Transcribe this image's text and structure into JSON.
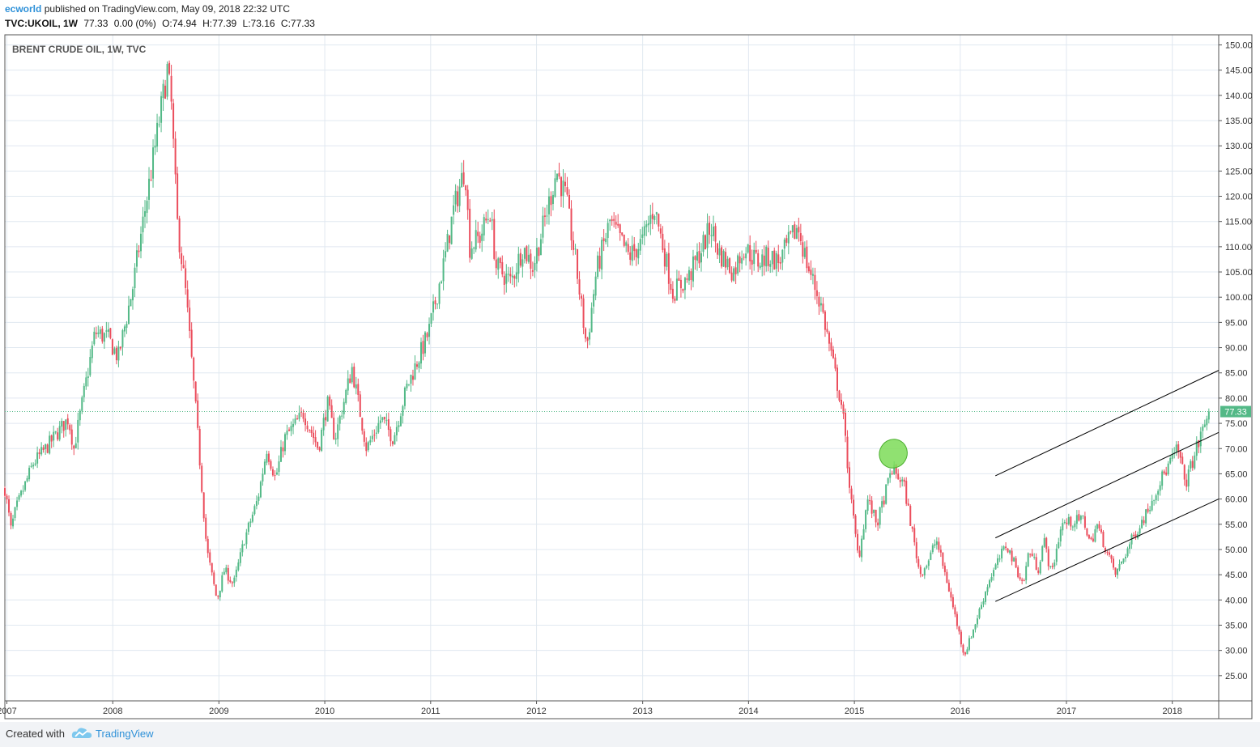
{
  "header": {
    "author": "ecworld",
    "published_text": "published on TradingView.com, May 09, 2018 22:32 UTC",
    "symbol": "TVC:UKOIL, 1W",
    "last": "77.33",
    "change": "0.00 (0%)",
    "open": "O:74.94",
    "high": "H:77.39",
    "low": "L:73.16",
    "close": "C:77.33"
  },
  "chart_title": "BRENT CRUDE OIL, 1W, TVC",
  "price_tag": "77.33",
  "footer": {
    "created_with": "Created with",
    "brand": "TradingView"
  },
  "colors": {
    "up": "#53b987",
    "down": "#eb4d5c",
    "grid": "#e0e8f0",
    "channel": "#000000",
    "highlight": "#7ddc58",
    "last_line": "#53b987"
  },
  "chart_data": {
    "type": "candlestick",
    "title": "BRENT CRUDE OIL, 1W, TVC",
    "ylim": [
      20,
      152
    ],
    "y_ticks": [
      "150.00",
      "145.00",
      "140.00",
      "135.00",
      "130.00",
      "125.00",
      "120.00",
      "115.00",
      "110.00",
      "105.00",
      "100.00",
      "95.00",
      "90.00",
      "85.00",
      "80.00",
      "75.00",
      "70.00",
      "65.00",
      "60.00",
      "55.00",
      "50.00",
      "45.00",
      "40.00",
      "35.00",
      "30.00",
      "25.00"
    ],
    "x_ticks": [
      "2007",
      "2008",
      "2009",
      "2010",
      "2011",
      "2012",
      "2013",
      "2014",
      "2015",
      "2016",
      "2017",
      "2018"
    ],
    "xlim": [
      "2006-12-25",
      "2018-06-10"
    ],
    "last_price": 77.33,
    "close_path": [
      [
        "2006-12-25",
        62
      ],
      [
        "2007-01-15",
        54
      ],
      [
        "2007-02-01",
        58
      ],
      [
        "2007-04-01",
        67
      ],
      [
        "2007-05-15",
        70
      ],
      [
        "2007-08-01",
        76
      ],
      [
        "2007-08-20",
        70
      ],
      [
        "2007-11-01",
        93
      ],
      [
        "2007-12-15",
        92
      ],
      [
        "2008-01-20",
        88
      ],
      [
        "2008-03-10",
        102
      ],
      [
        "2008-04-20",
        117
      ],
      [
        "2008-06-01",
        132
      ],
      [
        "2008-07-07",
        145
      ],
      [
        "2008-07-21",
        138
      ],
      [
        "2008-08-10",
        115
      ],
      [
        "2008-09-10",
        100
      ],
      [
        "2008-10-10",
        80
      ],
      [
        "2008-11-20",
        50
      ],
      [
        "2008-12-25",
        40
      ],
      [
        "2009-01-20",
        46
      ],
      [
        "2009-02-20",
        43
      ],
      [
        "2009-03-30",
        52
      ],
      [
        "2009-05-15",
        60
      ],
      [
        "2009-06-15",
        70
      ],
      [
        "2009-07-15",
        64
      ],
      [
        "2009-08-15",
        72
      ],
      [
        "2009-10-20",
        77
      ],
      [
        "2009-12-10",
        70
      ],
      [
        "2010-01-10",
        79
      ],
      [
        "2010-02-05",
        72
      ],
      [
        "2010-04-05",
        86
      ],
      [
        "2010-05-25",
        70
      ],
      [
        "2010-07-15",
        76
      ],
      [
        "2010-08-25",
        72
      ],
      [
        "2010-10-10",
        82
      ],
      [
        "2010-12-25",
        93
      ],
      [
        "2011-02-20",
        108
      ],
      [
        "2011-03-20",
        117
      ],
      [
        "2011-04-30",
        126
      ],
      [
        "2011-05-15",
        110
      ],
      [
        "2011-06-20",
        112
      ],
      [
        "2011-07-25",
        117
      ],
      [
        "2011-08-15",
        106
      ],
      [
        "2011-10-05",
        103
      ],
      [
        "2011-11-15",
        110
      ],
      [
        "2011-12-20",
        106
      ],
      [
        "2012-02-10",
        118
      ],
      [
        "2012-03-10",
        125
      ],
      [
        "2012-04-10",
        120
      ],
      [
        "2012-05-15",
        107
      ],
      [
        "2012-06-22",
        90
      ],
      [
        "2012-07-25",
        105
      ],
      [
        "2012-09-10",
        115
      ],
      [
        "2012-10-10",
        112
      ],
      [
        "2012-11-15",
        108
      ],
      [
        "2012-12-31",
        111
      ],
      [
        "2013-02-10",
        118
      ],
      [
        "2013-04-15",
        101
      ],
      [
        "2013-06-10",
        104
      ],
      [
        "2013-08-25",
        114
      ],
      [
        "2013-09-20",
        109
      ],
      [
        "2013-11-10",
        105
      ],
      [
        "2013-12-15",
        110
      ],
      [
        "2014-02-01",
        107
      ],
      [
        "2014-03-15",
        108
      ],
      [
        "2014-04-15",
        107
      ],
      [
        "2014-06-20",
        114
      ],
      [
        "2014-07-20",
        107
      ],
      [
        "2014-09-10",
        98
      ],
      [
        "2014-10-15",
        88
      ],
      [
        "2014-11-20",
        78
      ],
      [
        "2014-12-20",
        60
      ],
      [
        "2015-01-15",
        48
      ],
      [
        "2015-02-15",
        60
      ],
      [
        "2015-03-20",
        55
      ],
      [
        "2015-05-10",
        66
      ],
      [
        "2015-06-20",
        63
      ],
      [
        "2015-08-15",
        45
      ],
      [
        "2015-09-15",
        48
      ],
      [
        "2015-10-10",
        52
      ],
      [
        "2015-11-15",
        44
      ],
      [
        "2016-01-15",
        29
      ],
      [
        "2016-02-20",
        35
      ],
      [
        "2016-04-10",
        44
      ],
      [
        "2016-06-08",
        51
      ],
      [
        "2016-08-05",
        43
      ],
      [
        "2016-08-25",
        50
      ],
      [
        "2016-09-25",
        46
      ],
      [
        "2016-10-15",
        52
      ],
      [
        "2016-11-10",
        45
      ],
      [
        "2016-12-15",
        55
      ],
      [
        "2017-03-01",
        56
      ],
      [
        "2017-03-25",
        51
      ],
      [
        "2017-04-15",
        55
      ],
      [
        "2017-06-20",
        45
      ],
      [
        "2017-08-15",
        52
      ],
      [
        "2017-10-01",
        57
      ],
      [
        "2017-11-15",
        63
      ],
      [
        "2018-01-20",
        70
      ],
      [
        "2018-02-15",
        63
      ],
      [
        "2018-03-20",
        69
      ],
      [
        "2018-05-07",
        77.33
      ]
    ],
    "trendlines": [
      {
        "from": [
          "2016-05-01",
          64.6
        ],
        "to": [
          "2018-06-10",
          85.5
        ]
      },
      {
        "from": [
          "2016-05-01",
          52.3
        ],
        "to": [
          "2018-06-10",
          73.2
        ]
      },
      {
        "from": [
          "2016-05-01",
          39.7
        ],
        "to": [
          "2018-06-10",
          60.0
        ]
      }
    ],
    "annotation": {
      "type": "ellipse",
      "center": [
        "2015-05-15",
        69
      ],
      "color": "#7ddc58"
    }
  }
}
